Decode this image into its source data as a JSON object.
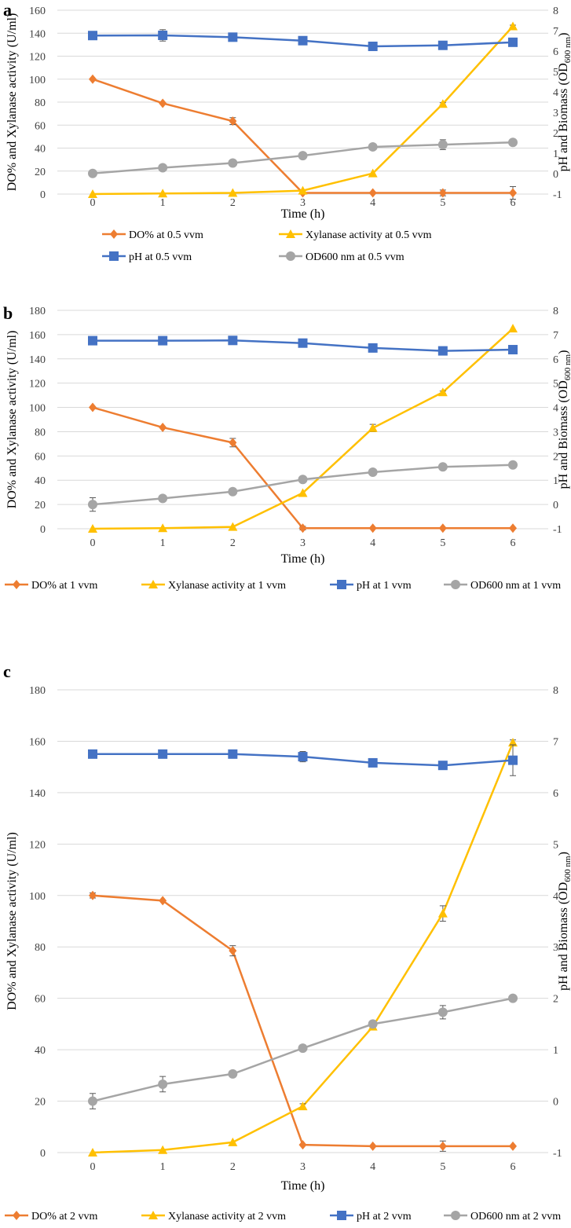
{
  "chart_data": [
    {
      "type": "line",
      "panel_label": "a",
      "xlabel": "Time (h)",
      "ylabel": "DO% and Xylanase activity (U/ml)",
      "y2label": "pH and Biomass (OD",
      "y2label_sub": "600 nm",
      "y2label_end": ")",
      "x": [
        "0",
        "1",
        "2",
        "3",
        "4",
        "5",
        "6"
      ],
      "ylim": [
        0,
        160
      ],
      "yticks": [
        "0",
        "20",
        "40",
        "60",
        "80",
        "100",
        "120",
        "140",
        "160"
      ],
      "y2lim": [
        -1,
        8
      ],
      "y2ticks": [
        "-1",
        "0",
        "1",
        "2",
        "3",
        "4",
        "5",
        "6",
        "7",
        "8"
      ],
      "grid": true,
      "legend": "bottom-two-rows",
      "series": [
        {
          "name": "DO% at 0.5 vvm",
          "axis": "left",
          "color": "#ED7D31",
          "marker": "diamond",
          "values": [
            100,
            79,
            63.5,
            1,
            1,
            1,
            1
          ],
          "errors": [
            0,
            0,
            3,
            0,
            0,
            2.5,
            5.5
          ]
        },
        {
          "name": "Xylanase activity at 0.5 vvm",
          "axis": "left",
          "color": "#FFC000",
          "marker": "triangle",
          "values": [
            0,
            0.5,
            1,
            3,
            18,
            78.5,
            146
          ],
          "errors": [
            0,
            0,
            0,
            0,
            0,
            1,
            1
          ]
        },
        {
          "name": "pH at 0.5 vvm",
          "axis": "right",
          "color": "#4472C4",
          "marker": "square",
          "values": [
            6.76,
            6.77,
            6.68,
            6.51,
            6.23,
            6.28,
            6.43
          ],
          "errors": [
            0.12,
            0.28,
            0,
            0.1,
            0,
            0,
            0
          ]
        },
        {
          "name": "OD600 nm at 0.5 vvm",
          "axis": "right",
          "color": "#A5A5A5",
          "marker": "circle",
          "values": [
            0.01,
            0.29,
            0.52,
            0.88,
            1.31,
            1.42,
            1.53
          ],
          "errors": [
            0,
            0,
            0,
            0,
            0,
            0.24,
            0.05
          ]
        }
      ]
    },
    {
      "type": "line",
      "panel_label": "b",
      "xlabel": "Time (h)",
      "ylabel": "DO% and Xylanase activity (U/ml)",
      "y2label": "pH and Biomass (OD",
      "y2label_sub": "600 nm",
      "y2label_end": ")",
      "x": [
        "0",
        "1",
        "2",
        "3",
        "4",
        "5",
        "6"
      ],
      "ylim": [
        0,
        180
      ],
      "yticks": [
        "0",
        "20",
        "40",
        "60",
        "80",
        "100",
        "120",
        "140",
        "160",
        "180"
      ],
      "y2lim": [
        -1,
        8
      ],
      "y2ticks": [
        "-1",
        "0",
        "1",
        "2",
        "3",
        "4",
        "5",
        "6",
        "7",
        "8"
      ],
      "grid": true,
      "legend": "bottom",
      "series": [
        {
          "name": "DO% at 1 vvm",
          "axis": "left",
          "color": "#ED7D31",
          "marker": "diamond",
          "values": [
            100,
            83.5,
            71,
            0.5,
            0.5,
            0.5,
            0.5
          ],
          "errors": [
            0,
            0,
            3.5,
            1.5,
            0,
            0,
            0
          ]
        },
        {
          "name": "Xylanase activity at 1 vvm",
          "axis": "left",
          "color": "#FFC000",
          "marker": "triangle",
          "values": [
            0,
            0.5,
            1.5,
            29.5,
            83,
            112.5,
            165
          ],
          "errors": [
            0,
            0,
            0,
            0,
            3,
            1,
            0
          ]
        },
        {
          "name": "pH at 1 vvm",
          "axis": "right",
          "color": "#4472C4",
          "marker": "square",
          "values": [
            6.75,
            6.75,
            6.76,
            6.65,
            6.45,
            6.33,
            6.38
          ],
          "errors": [
            0,
            0.15,
            0,
            0,
            0,
            0.16,
            0
          ]
        },
        {
          "name": "OD600 nm at 1 vvm",
          "axis": "right",
          "color": "#A5A5A5",
          "marker": "circle",
          "values": [
            0,
            0.25,
            0.53,
            1.03,
            1.33,
            1.55,
            1.63
          ],
          "errors": [
            0.28,
            0,
            0,
            0,
            0,
            0,
            0.05
          ]
        }
      ]
    },
    {
      "type": "line",
      "panel_label": "c",
      "xlabel": "Time (h)",
      "ylabel": "DO% and Xylanase activity (U/ml)",
      "y2label": "pH and Biomass (OD",
      "y2label_sub": "600 nm",
      "y2label_end": ")",
      "x": [
        "0",
        "1",
        "2",
        "3",
        "4",
        "5",
        "6"
      ],
      "ylim": [
        0,
        180
      ],
      "yticks": [
        "0",
        "20",
        "40",
        "60",
        "80",
        "100",
        "120",
        "140",
        "160",
        "180"
      ],
      "y2lim": [
        -1,
        8
      ],
      "y2ticks": [
        "-1",
        "0",
        "1",
        "2",
        "3",
        "4",
        "5",
        "6",
        "7",
        "8"
      ],
      "grid": true,
      "legend": "bottom",
      "series": [
        {
          "name": "DO% at 2 vvm",
          "axis": "left",
          "color": "#ED7D31",
          "marker": "diamond",
          "values": [
            100,
            98,
            78.5,
            3,
            2.5,
            2.5,
            2.5
          ],
          "errors": [
            1,
            0,
            2,
            0,
            0,
            2,
            0
          ]
        },
        {
          "name": "Xylanase activity at 2 vvm",
          "axis": "left",
          "color": "#FFC000",
          "marker": "triangle",
          "values": [
            0,
            1,
            4,
            18,
            49,
            93,
            159.5
          ],
          "errors": [
            0,
            0,
            0,
            1,
            0,
            3,
            1
          ]
        },
        {
          "name": "pH at 2 vvm",
          "axis": "right",
          "color": "#4472C4",
          "marker": "square",
          "values": [
            6.75,
            6.75,
            6.75,
            6.7,
            6.58,
            6.53,
            6.63
          ],
          "errors": [
            0,
            0,
            0,
            0.1,
            0,
            0,
            0.3
          ]
        },
        {
          "name": "OD600 nm at 2 vvm",
          "axis": "right",
          "color": "#A5A5A5",
          "marker": "circle",
          "values": [
            0,
            0.33,
            0.53,
            1.03,
            1.5,
            1.73,
            2.0
          ],
          "errors": [
            0.15,
            0.15,
            0,
            0,
            0,
            0.13,
            0
          ]
        }
      ]
    }
  ]
}
